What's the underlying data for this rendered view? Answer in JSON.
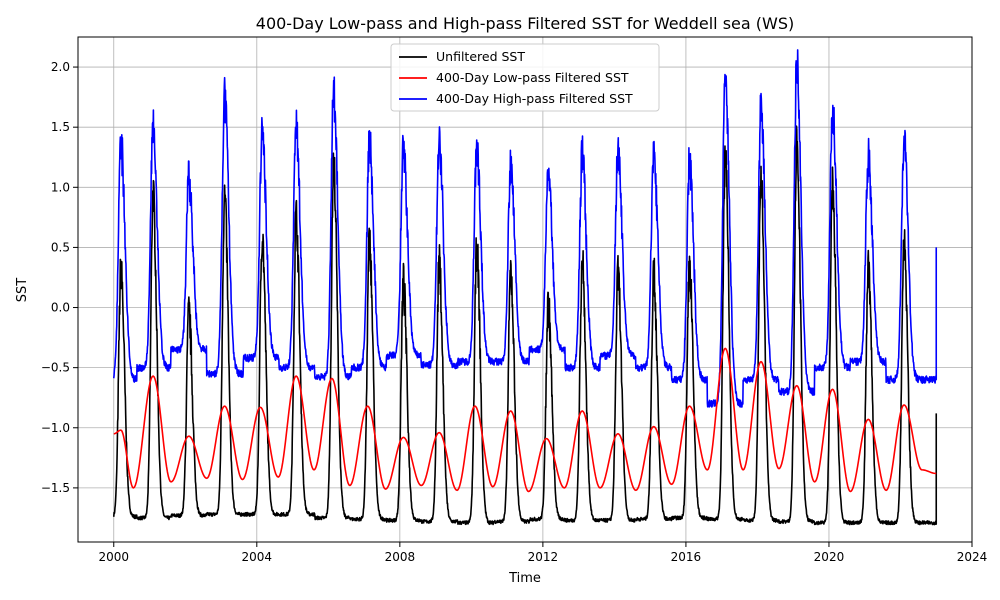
{
  "chart_data": {
    "type": "line",
    "title": "400-Day Low-pass and High-pass Filtered SST for Weddell sea (WS)",
    "xlabel": "Time",
    "ylabel": "SST",
    "xlim": [
      1999.0,
      2024.0
    ],
    "ylim": [
      -1.95,
      2.25
    ],
    "x_ticks": [
      2000,
      2004,
      2008,
      2012,
      2016,
      2020,
      2024
    ],
    "y_ticks": [
      -1.5,
      -1.0,
      -0.5,
      0.0,
      0.5,
      1.0,
      1.5,
      2.0
    ],
    "x_tick_labels": [
      "2000",
      "2004",
      "2008",
      "2012",
      "2016",
      "2020",
      "2024"
    ],
    "y_tick_labels": [
      "−1.5",
      "−1.0",
      "−0.5",
      "0.0",
      "0.5",
      "1.0",
      "1.5",
      "2.0"
    ],
    "grid": true,
    "legend_position": "top-center",
    "summer_peaks_x": [
      2000.2,
      2001.1,
      2002.1,
      2003.1,
      2004.15,
      2005.1,
      2006.15,
      2007.15,
      2008.1,
      2009.1,
      2010.15,
      2011.1,
      2012.15,
      2013.1,
      2014.1,
      2015.1,
      2016.1,
      2017.1,
      2018.1,
      2019.1,
      2020.1,
      2021.1,
      2022.1
    ],
    "series": [
      {
        "name": "Unfiltered SST",
        "color": "#000000",
        "summer_peak_values": [
          0.32,
          0.94,
          -0.05,
          0.92,
          0.6,
          0.76,
          1.2,
          0.55,
          0.2,
          0.37,
          0.48,
          0.3,
          0.03,
          0.38,
          0.27,
          0.27,
          0.35,
          1.3,
          1.1,
          1.4,
          1.02,
          0.32,
          0.55
        ],
        "winter_min_values": [
          -1.74,
          -1.75,
          -1.73,
          -1.72,
          -1.72,
          -1.72,
          -1.75,
          -1.76,
          -1.77,
          -1.78,
          -1.79,
          -1.78,
          -1.76,
          -1.77,
          -1.77,
          -1.76,
          -1.75,
          -1.76,
          -1.77,
          -1.78,
          -1.79,
          -1.79,
          -1.79
        ],
        "end_value": -0.88
      },
      {
        "name": "400-Day Low-pass Filtered SST",
        "color": "#ff0000",
        "x": [
          2000.0,
          2000.2,
          2000.55,
          2001.1,
          2001.6,
          2002.1,
          2002.6,
          2003.1,
          2003.6,
          2004.1,
          2004.6,
          2005.1,
          2005.6,
          2006.1,
          2006.6,
          2007.1,
          2007.6,
          2008.1,
          2008.6,
          2009.1,
          2009.6,
          2010.1,
          2010.6,
          2011.1,
          2011.6,
          2012.1,
          2012.6,
          2013.1,
          2013.6,
          2014.1,
          2014.6,
          2015.1,
          2015.6,
          2016.1,
          2016.6,
          2017.1,
          2017.6,
          2018.1,
          2018.6,
          2019.1,
          2019.6,
          2020.1,
          2020.6,
          2021.1,
          2021.6,
          2022.1,
          2022.6,
          2023.0
        ],
        "values": [
          -1.05,
          -1.02,
          -1.5,
          -0.57,
          -1.45,
          -1.07,
          -1.42,
          -0.82,
          -1.43,
          -0.83,
          -1.41,
          -0.57,
          -1.35,
          -0.59,
          -1.48,
          -0.82,
          -1.51,
          -1.08,
          -1.48,
          -1.04,
          -1.52,
          -0.82,
          -1.49,
          -0.86,
          -1.53,
          -1.09,
          -1.5,
          -0.86,
          -1.5,
          -1.05,
          -1.52,
          -0.99,
          -1.47,
          -0.82,
          -1.35,
          -0.34,
          -1.35,
          -0.45,
          -1.34,
          -0.65,
          -1.45,
          -0.68,
          -1.53,
          -0.93,
          -1.52,
          -0.81,
          -1.35,
          -1.38
        ]
      },
      {
        "name": "400-Day High-pass Filtered SST",
        "color": "#0000ff",
        "summer_peak_values": [
          1.35,
          1.55,
          1.07,
          1.74,
          1.45,
          1.51,
          1.8,
          1.38,
          1.29,
          1.41,
          1.33,
          1.21,
          1.12,
          1.27,
          1.33,
          1.28,
          1.2,
          1.95,
          1.66,
          2.05,
          1.64,
          1.25,
          1.42
        ],
        "winter_min_values": [
          -0.6,
          -0.5,
          -0.35,
          -0.55,
          -0.42,
          -0.5,
          -0.58,
          -0.5,
          -0.4,
          -0.48,
          -0.45,
          -0.45,
          -0.35,
          -0.5,
          -0.4,
          -0.5,
          -0.6,
          -0.8,
          -0.6,
          -0.7,
          -0.5,
          -0.45,
          -0.6
        ],
        "end_value": 0.5
      }
    ]
  }
}
